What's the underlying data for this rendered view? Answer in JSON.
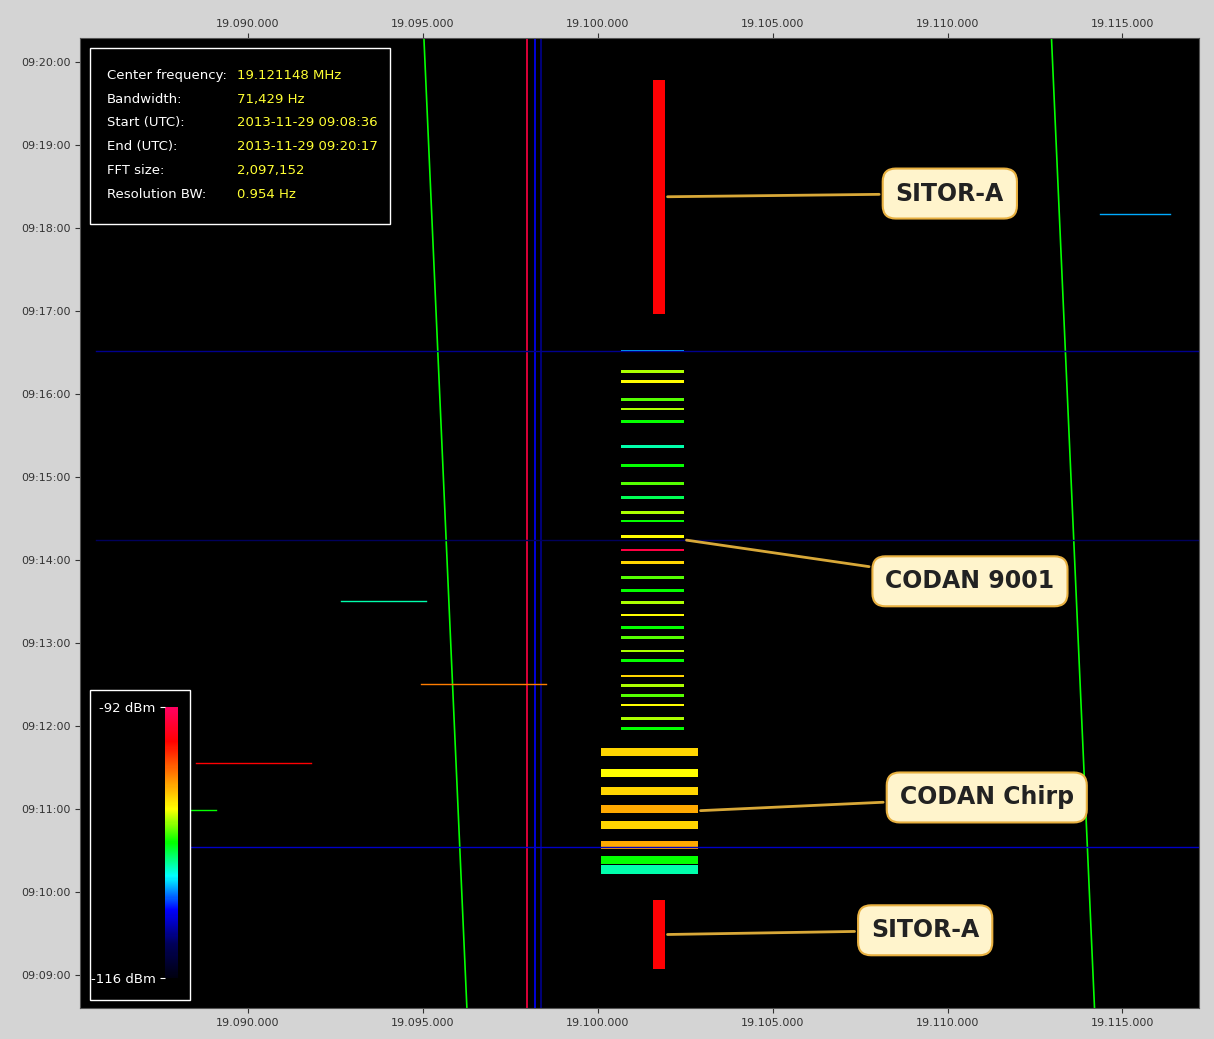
{
  "chart_data": {
    "type": "spectrogram",
    "grid": false,
    "xlim": [
      19085200,
      19117200
    ],
    "xticks": [
      {
        "value": 19090000,
        "label": "19.090.000"
      },
      {
        "value": 19095000,
        "label": "19.095.000"
      },
      {
        "value": 19100000,
        "label": "19.100.000"
      },
      {
        "value": 19105000,
        "label": "19.105.000"
      },
      {
        "value": 19110000,
        "label": "19.110.000"
      },
      {
        "value": 19115000,
        "label": "19.115.000"
      }
    ],
    "ylim": [
      32916,
      33617
    ],
    "yticks": [
      {
        "value": 32940,
        "label": "09:09:00"
      },
      {
        "value": 33000,
        "label": "09:10:00"
      },
      {
        "value": 33060,
        "label": "09:11:00"
      },
      {
        "value": 33120,
        "label": "09:12:00"
      },
      {
        "value": 33180,
        "label": "09:13:00"
      },
      {
        "value": 33240,
        "label": "09:14:00"
      },
      {
        "value": 33300,
        "label": "09:15:00"
      },
      {
        "value": 33360,
        "label": "09:16:00"
      },
      {
        "value": 33420,
        "label": "09:17:00"
      },
      {
        "value": 33480,
        "label": "09:18:00"
      },
      {
        "value": 33540,
        "label": "09:19:00"
      },
      {
        "value": 33600,
        "label": "09:20:00"
      }
    ],
    "info": {
      "rows": [
        [
          "Center frequency:",
          "19.121148 MHz"
        ],
        [
          "Bandwidth:",
          "71,429 Hz"
        ],
        [
          "Start (UTC):",
          "2013-11-29 09:08:36"
        ],
        [
          "End (UTC):",
          "2013-11-29 09:20:17"
        ],
        [
          "FFT size:",
          "2,097,152"
        ],
        [
          "Resolution BW:",
          "0.954 Hz"
        ]
      ]
    },
    "colorbar": {
      "range": [
        -116,
        -92
      ],
      "ticks": [
        {
          "value": -116,
          "label": "-116 dBm"
        },
        {
          "value": -92,
          "label": "-92 dBm"
        }
      ]
    },
    "signals": [
      {
        "name": "SITOR-A",
        "freq": [
          19101571,
          19101914
        ],
        "time": [
          33418,
          33587
        ],
        "level": -95
      },
      {
        "name": "CODAN 9001",
        "freq": [
          19100657,
          19102457
        ],
        "time": [
          33118,
          33391
        ],
        "level": -103,
        "burst_length": 2,
        "burst_times": [
          33391,
          33376,
          33369,
          33356,
          33349,
          33340,
          33322,
          33308,
          33295,
          33285,
          33274,
          33268,
          33257,
          33247,
          33238,
          33227,
          33218,
          33209,
          33200,
          33191,
          33184,
          33174,
          33167,
          33156,
          33149,
          33142,
          33135,
          33125,
          33118
        ],
        "burst_levels": [
          -108,
          -102,
          -101,
          -103,
          -102,
          -104,
          -106,
          -104,
          -103,
          -105,
          -102,
          -104,
          -101,
          -93,
          -100,
          -103,
          -104,
          -102,
          -101,
          -104,
          -103,
          -102,
          -104,
          -100,
          -102,
          -103,
          -101,
          -102,
          -104
        ]
      },
      {
        "name": "CODAN Chirp",
        "freq": [
          19100086,
          19102857
        ],
        "time": [
          33016,
          33101
        ],
        "level": -100,
        "burst_length": 6,
        "burst_times": [
          33101,
          33086,
          33073,
          33060,
          33048,
          33034,
          33023,
          33016
        ],
        "burst_levels": [
          -100,
          -101,
          -100,
          -99,
          -100,
          -99,
          -104,
          -106
        ]
      },
      {
        "name": "SITOR-A",
        "freq": [
          19101571,
          19101914
        ],
        "time": [
          32944,
          32994
        ],
        "level": -95
      }
    ],
    "carriers": [
      {
        "freq": [
          19096257,
          19095029
        ],
        "time": [
          32916,
          33617
        ],
        "level": -104
      },
      {
        "freq": [
          19114200,
          19112971
        ],
        "time": [
          32916,
          33617
        ],
        "level": -104
      },
      {
        "freq": [
          19097971,
          19097971
        ],
        "time": [
          32916,
          33617
        ],
        "level": -93
      },
      {
        "freq": [
          19098200,
          19098200
        ],
        "time": [
          32916,
          33617
        ],
        "level": -110
      },
      {
        "freq": [
          19098371,
          19098371
        ],
        "time": [
          32916,
          33617
        ],
        "level": -112
      }
    ],
    "bursts": [
      {
        "freq": [
          19094943,
          19098514
        ],
        "time": 33150,
        "level": -98
      },
      {
        "freq": [
          19088514,
          19091800
        ],
        "time": 33093,
        "level": -95
      },
      {
        "freq": [
          19085657,
          19117200
        ],
        "time": 33391,
        "level": -112
      },
      {
        "freq": [
          19085657,
          19117200
        ],
        "time": 33254,
        "level": -113
      },
      {
        "freq": [
          19085657,
          19117200
        ],
        "time": 33032,
        "level": -111
      },
      {
        "freq": [
          19092657,
          19095086
        ],
        "time": 33210,
        "level": -106
      },
      {
        "freq": [
          19114371,
          19116371
        ],
        "time": 33490,
        "level": -108
      },
      {
        "freq": [
          19088371,
          19089086
        ],
        "time": 33059,
        "level": -104
      }
    ]
  }
}
